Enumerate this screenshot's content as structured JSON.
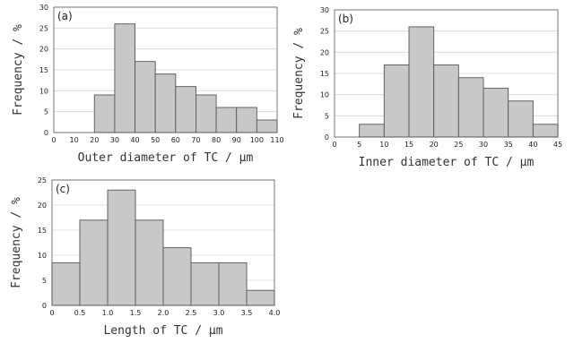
{
  "chart_data": [
    {
      "type": "bar",
      "panel_label": "(a)",
      "xlabel": "Outer diameter of TC / μm",
      "ylabel": "Frequency / %",
      "xlim": [
        0,
        110
      ],
      "ylim": [
        0,
        30
      ],
      "xticks": [
        "0",
        "10",
        "20",
        "30",
        "40",
        "50",
        "60",
        "70",
        "80",
        "90",
        "100",
        "110"
      ],
      "yticks": [
        "0",
        "5",
        "10",
        "15",
        "20",
        "25",
        "30"
      ],
      "bins": [
        [
          20,
          30
        ],
        [
          30,
          40
        ],
        [
          40,
          50
        ],
        [
          50,
          60
        ],
        [
          60,
          70
        ],
        [
          70,
          80
        ],
        [
          80,
          90
        ],
        [
          90,
          100
        ],
        [
          100,
          110
        ]
      ],
      "values": [
        9,
        26,
        17,
        14,
        11,
        9,
        6,
        6,
        3
      ],
      "grid": true
    },
    {
      "type": "bar",
      "panel_label": "(b)",
      "xlabel": "Inner diameter of TC / μm",
      "ylabel": "Frequency / %",
      "xlim": [
        0,
        45
      ],
      "ylim": [
        0,
        30
      ],
      "xticks": [
        "0",
        "5",
        "10",
        "15",
        "20",
        "25",
        "30",
        "35",
        "40",
        "45"
      ],
      "yticks": [
        "0",
        "5",
        "10",
        "15",
        "20",
        "25",
        "30"
      ],
      "bins": [
        [
          5,
          10
        ],
        [
          10,
          15
        ],
        [
          15,
          20
        ],
        [
          20,
          25
        ],
        [
          25,
          30
        ],
        [
          30,
          35
        ],
        [
          35,
          40
        ],
        [
          40,
          45
        ]
      ],
      "values": [
        3,
        17,
        26,
        17,
        14,
        11.5,
        8.5,
        3
      ],
      "grid": true
    },
    {
      "type": "bar",
      "panel_label": "(c)",
      "xlabel": "Length of TC / μm",
      "ylabel": "Frequency / %",
      "xlim": [
        0,
        4
      ],
      "ylim": [
        0,
        25
      ],
      "xticks": [
        "0",
        "0.5",
        "1.0",
        "1.5",
        "2.0",
        "2.5",
        "3.0",
        "3.5",
        "4.0"
      ],
      "yticks": [
        "0",
        "5",
        "10",
        "15",
        "20",
        "25"
      ],
      "bins": [
        [
          0,
          0.5
        ],
        [
          0.5,
          1.0
        ],
        [
          1.0,
          1.5
        ],
        [
          1.5,
          2.0
        ],
        [
          2.0,
          2.5
        ],
        [
          2.5,
          3.0
        ],
        [
          3.0,
          3.5
        ],
        [
          3.5,
          4.0
        ]
      ],
      "values": [
        8.5,
        17,
        23,
        17,
        11.5,
        8.5,
        8.5,
        3
      ],
      "grid": true
    }
  ],
  "colors": {
    "bar_fill": "#c8c8c8",
    "bar_stroke": "#555555",
    "grid": "#d6d6d6",
    "axis": "#555555"
  }
}
